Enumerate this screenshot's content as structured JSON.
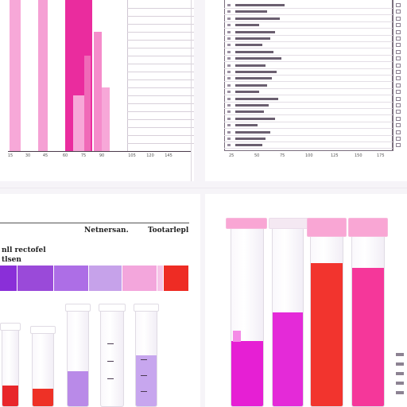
{
  "top_left": {
    "tick_labels": [
      "15",
      "30",
      "45",
      "60",
      "75",
      "90",
      "105",
      "120",
      "145"
    ],
    "colors": {
      "pink": "#f79ad0",
      "magenta": "#ea2c9e",
      "grid": "#d8d0da"
    }
  },
  "top_right": {
    "tick_labels": [
      "25",
      "50",
      "75",
      "100",
      "125",
      "150",
      "175"
    ]
  },
  "bottom_left": {
    "header_left": "Netnersan.",
    "header_right": "Tootarlepl",
    "label_1": "nll rectofel",
    "label_2": "tlsen",
    "strip_colors": [
      "#8a2fd8",
      "#9848dc",
      "#a968e6",
      "#c39ae8",
      "#f3a2dc",
      "#f6c0e8",
      "#ee2c24"
    ]
  },
  "bottom_right": {
    "tube_colors": [
      "#e61fd4",
      "#e42ad8",
      "#f2342e",
      "#f5379a"
    ],
    "cap_color": "#f9a6d4"
  }
}
